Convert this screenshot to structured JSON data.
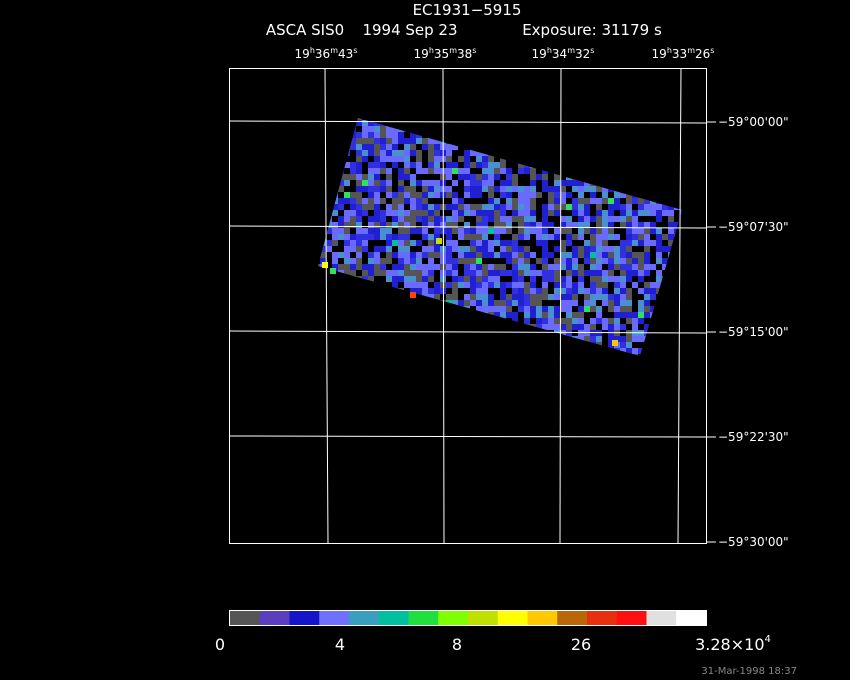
{
  "header": {
    "title": "EC1931−5915",
    "instrument": "ASCA SIS0",
    "date": "1994 Sep 23",
    "exposure": "Exposure: 31179 s"
  },
  "ra_labels": [
    [
      "19",
      "h",
      "36",
      "m",
      "43",
      "s"
    ],
    [
      "19",
      "h",
      "35",
      "m",
      "38",
      "s"
    ],
    [
      "19",
      "h",
      "34",
      "m",
      "32",
      "s"
    ],
    [
      "19",
      "h",
      "33",
      "m",
      "26",
      "s"
    ]
  ],
  "dec_labels": [
    "−59°00'00\"",
    "−59°07'30\"",
    "−59°15'00\"",
    "−59°22'30\"",
    "−59°30'00\""
  ],
  "colorbar": {
    "colors": [
      "#555555",
      "#5a3fbf",
      "#1414c8",
      "#7070ff",
      "#3a9fbf",
      "#00c0a0",
      "#20e040",
      "#80ff00",
      "#c0e000",
      "#ffff00",
      "#ffc800",
      "#b8680a",
      "#e83010",
      "#ff1010",
      "#e0e0e0",
      "#ffffff"
    ],
    "labels": [
      [
        "0"
      ],
      [
        "4"
      ],
      [
        "8"
      ],
      [
        "26"
      ],
      [
        "3.28×10",
        "4"
      ]
    ]
  },
  "timestamp": "31-Mar-1998 18:37"
}
